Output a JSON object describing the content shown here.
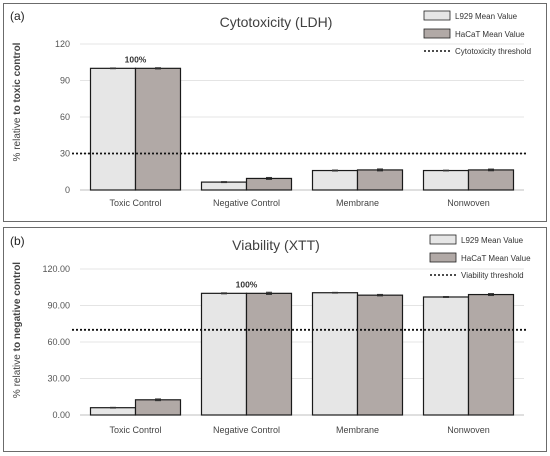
{
  "chart_data": [
    {
      "panel_label": "(a)",
      "type": "bar",
      "title": "Cytotoxicity (LDH)",
      "ylabel_plain": "% relative ",
      "ylabel_bold": "to toxic control",
      "ylim": [
        0,
        120
      ],
      "yticks": [
        "0",
        "30",
        "60",
        "90",
        "120"
      ],
      "ytick_values": [
        0,
        30,
        60,
        90,
        120
      ],
      "categories": [
        "Toxic Control",
        "Negative Control",
        "Membrane",
        "Nonwoven"
      ],
      "series": [
        {
          "name": "L929 Mean Value",
          "values": [
            100,
            6.5,
            16,
            16
          ],
          "errors": [
            0.3,
            0.4,
            0.4,
            0.3
          ],
          "color": "#e6e6e6"
        },
        {
          "name": "HaCaT Mean Value",
          "values": [
            100,
            9.5,
            16.5,
            16.5
          ],
          "errors": [
            0.5,
            0.8,
            0.8,
            0.7
          ],
          "color": "#b1a9a6"
        }
      ],
      "threshold": {
        "name": "Cytotoxicity threshold",
        "value": 30
      },
      "annotation": {
        "text": "100%",
        "category_index": 0
      },
      "grid": true,
      "legend_position": "top-right"
    },
    {
      "panel_label": "(b)",
      "type": "bar",
      "title": "Viability (XTT)",
      "ylabel_plain": "% relative ",
      "ylabel_bold": "to negative control",
      "ylim": [
        0,
        120
      ],
      "yticks": [
        "0.00",
        "30.00",
        "60.00",
        "90.00",
        "120.00"
      ],
      "ytick_values": [
        0,
        30,
        60,
        90,
        120
      ],
      "categories": [
        "Toxic Control",
        "Negative Control",
        "Membrane",
        "Nonwoven"
      ],
      "series": [
        {
          "name": "L929 Mean Value",
          "values": [
            6,
            100,
            100.5,
            97
          ],
          "errors": [
            0.3,
            0.4,
            0.3,
            0.4
          ],
          "color": "#e6e6e6"
        },
        {
          "name": "HaCaT Mean Value",
          "values": [
            12.5,
            100,
            98.5,
            99
          ],
          "errors": [
            0.7,
            0.9,
            0.6,
            0.8
          ],
          "color": "#b1a9a6"
        }
      ],
      "threshold": {
        "name": "Viability threshold",
        "value": 70
      },
      "annotation": {
        "text": "100%",
        "category_index": 1
      },
      "grid": true,
      "legend_position": "top-right"
    }
  ]
}
